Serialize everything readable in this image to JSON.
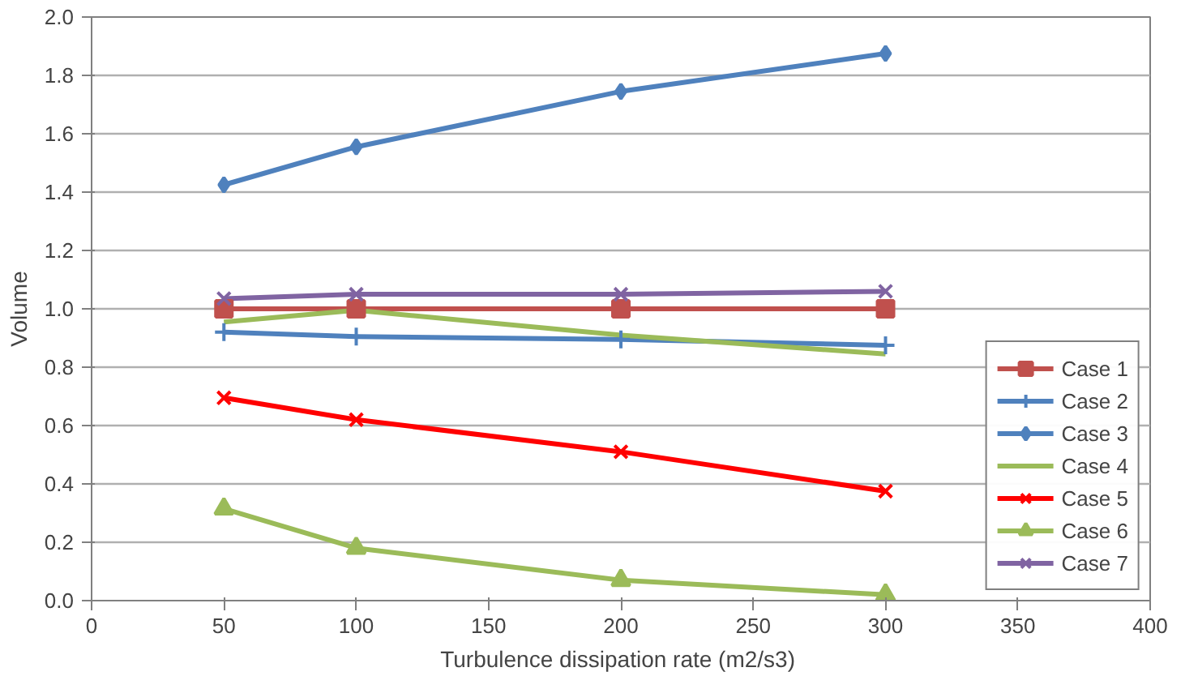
{
  "chart_data": {
    "type": "line",
    "xlabel": "Turbulence  dissipation rate (m2/s3)",
    "ylabel": "Volume",
    "x": [
      50,
      100,
      200,
      300
    ],
    "xlim": [
      0,
      400
    ],
    "xticks": [
      0,
      50,
      100,
      150,
      200,
      250,
      300,
      350,
      400
    ],
    "ylim": [
      0,
      2.0
    ],
    "yticks": [
      {
        "value": 0,
        "label": "0.0"
      },
      {
        "value": 0.2,
        "label": "0.2"
      },
      {
        "value": 0.4,
        "label": "0.4"
      },
      {
        "value": 0.6,
        "label": "0.6"
      },
      {
        "value": 0.8,
        "label": "0.8"
      },
      {
        "value": 1.0,
        "label": "1.0"
      },
      {
        "value": 1.2,
        "label": "1.2"
      },
      {
        "value": 1.4,
        "label": "1.4"
      },
      {
        "value": 1.6,
        "label": "1.6"
      },
      {
        "value": 1.8,
        "label": "1.8"
      },
      {
        "value": 2.0,
        "label": "2.0"
      }
    ],
    "grid": "y",
    "legend": "bottom right",
    "line_style": "solid",
    "series": [
      {
        "name": "Case 1",
        "color": "#c0504d",
        "marker": "square",
        "values": [
          1.0,
          1.0,
          1.0,
          1.0
        ]
      },
      {
        "name": "Case 2",
        "color": "#4f81bd",
        "marker": "cross",
        "values": [
          0.92,
          0.905,
          0.895,
          0.875
        ]
      },
      {
        "name": "Case 3",
        "color": "#4f81bd",
        "marker": "diamond",
        "values": [
          1.425,
          1.555,
          1.745,
          1.875
        ]
      },
      {
        "name": "Case 4",
        "color": "#9bbb59",
        "marker": "none",
        "values": [
          0.955,
          0.995,
          0.91,
          0.845
        ]
      },
      {
        "name": "Case 5",
        "color": "#ff0000",
        "marker": "x",
        "values": [
          0.695,
          0.62,
          0.51,
          0.375
        ]
      },
      {
        "name": "Case 6",
        "color": "#9bbb59",
        "marker": "triangle",
        "values": [
          0.315,
          0.18,
          0.07,
          0.02
        ]
      },
      {
        "name": "Case 7",
        "color": "#8064a2",
        "marker": "x",
        "values": [
          1.035,
          1.05,
          1.05,
          1.06
        ]
      }
    ]
  }
}
